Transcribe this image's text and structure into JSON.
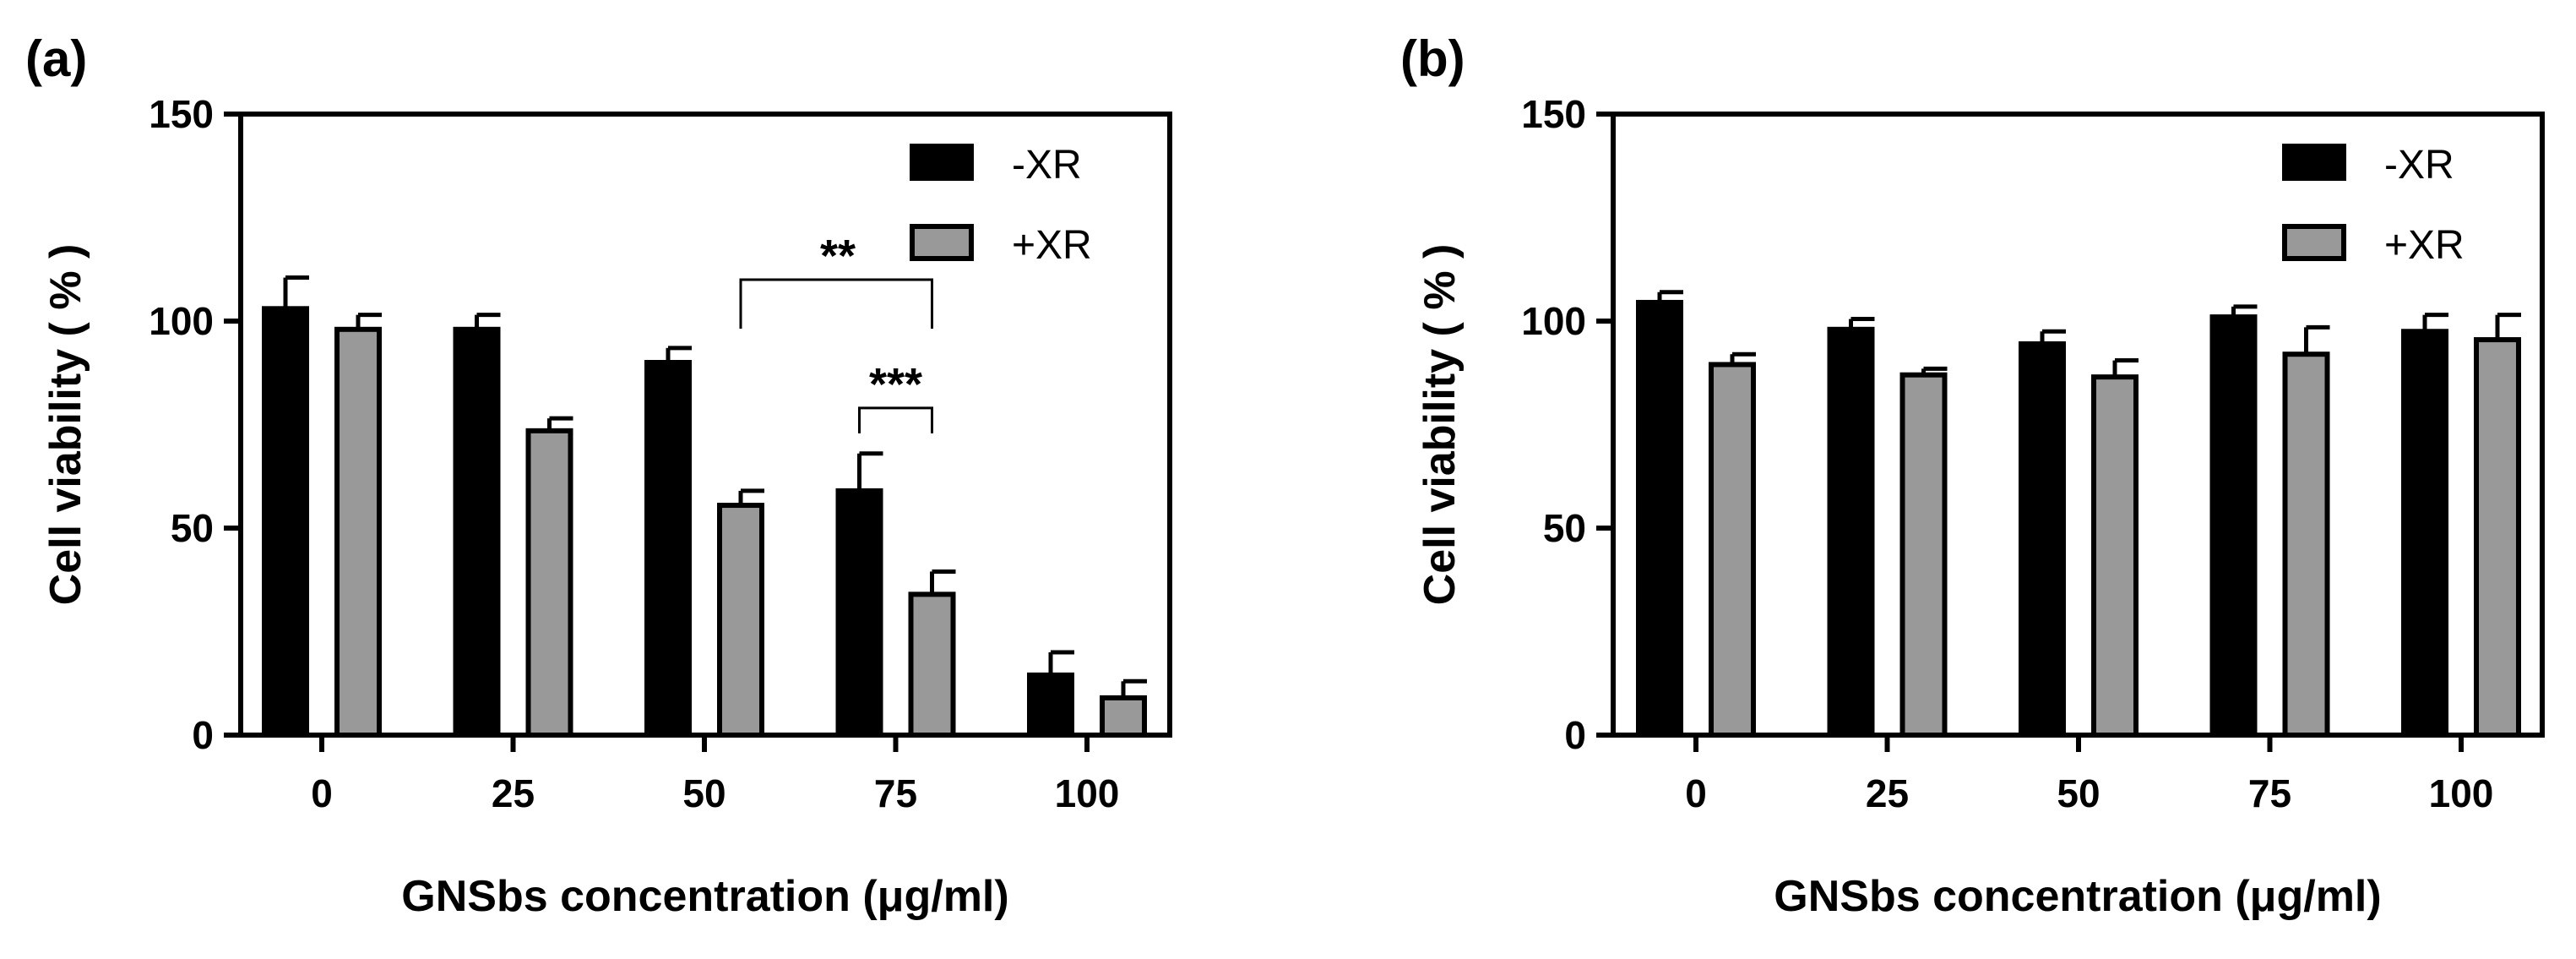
{
  "chart_data": [
    {
      "panel": "(a)",
      "type": "bar",
      "categories": [
        "0",
        "25",
        "50",
        "75",
        "100"
      ],
      "series": [
        {
          "name": "-XR",
          "color": "#000000",
          "values": [
            103,
            98,
            90,
            59,
            14.5
          ],
          "errors": [
            7.5,
            3.5,
            3.5,
            9,
            5.5
          ]
        },
        {
          "name": "+XR",
          "color": "#999999",
          "values": [
            98,
            73.5,
            55.5,
            34,
            9
          ],
          "errors": [
            3.5,
            3,
            3.5,
            5.5,
            4
          ]
        }
      ],
      "xlabel": "GNSbs concentration (μg/ml)",
      "ylabel": "Cell viability ( % )",
      "ylim": [
        0,
        150
      ],
      "yticks": [
        "0",
        "50",
        "100",
        "150"
      ],
      "legend_position": "top-right",
      "annotations": [
        {
          "label": "**",
          "from_category": "50",
          "to_category": "75",
          "bracket_y": 110
        },
        {
          "label": "***",
          "from_category": "75",
          "to_category": "75",
          "bracket_y": 79
        }
      ]
    },
    {
      "panel": "(b)",
      "type": "bar",
      "categories": [
        "0",
        "25",
        "50",
        "75",
        "100"
      ],
      "series": [
        {
          "name": "-XR",
          "color": "#000000",
          "values": [
            104.5,
            98,
            94.5,
            101,
            97.5
          ],
          "errors": [
            2.5,
            2.5,
            3,
            2.5,
            4
          ]
        },
        {
          "name": "+XR",
          "color": "#999999",
          "values": [
            89.5,
            87,
            86.5,
            92,
            95.5
          ],
          "errors": [
            2.5,
            1.5,
            4,
            6.5,
            6
          ]
        }
      ],
      "xlabel": "GNSbs concentration (μg/ml)",
      "ylabel": "Cell viability ( % )",
      "ylim": [
        0,
        150
      ],
      "yticks": [
        "0",
        "50",
        "100",
        "150"
      ],
      "legend_position": "top-right",
      "annotations": []
    }
  ]
}
